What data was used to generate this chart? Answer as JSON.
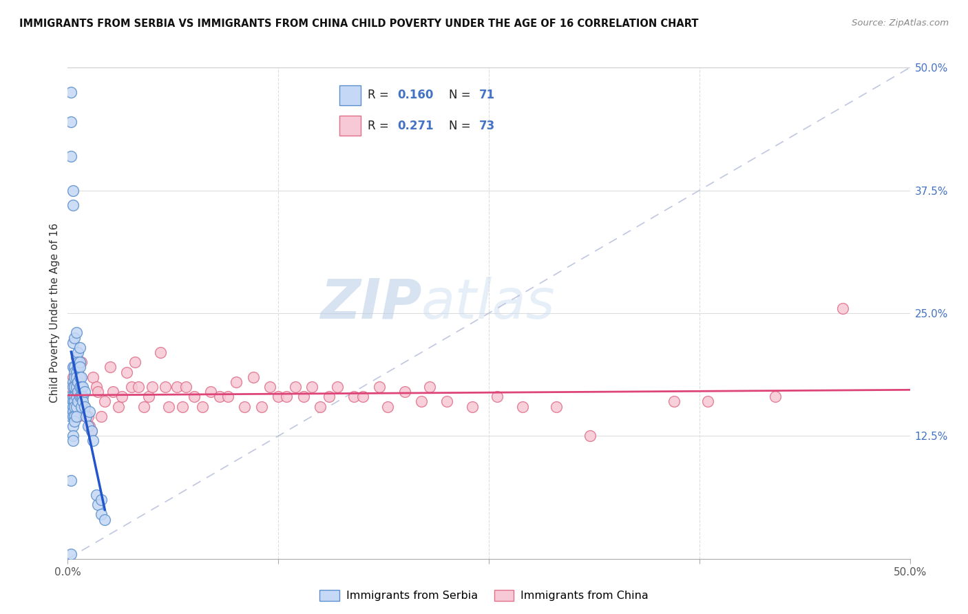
{
  "title": "IMMIGRANTS FROM SERBIA VS IMMIGRANTS FROM CHINA CHILD POVERTY UNDER THE AGE OF 16 CORRELATION CHART",
  "source": "Source: ZipAtlas.com",
  "ylabel": "Child Poverty Under the Age of 16",
  "xlim": [
    0,
    0.5
  ],
  "ylim": [
    0,
    0.5
  ],
  "serbia_color": "#c5d8f5",
  "serbia_edge": "#5b8fcc",
  "china_color": "#f7c8d5",
  "china_edge": "#e0708a",
  "serbia_R": 0.16,
  "serbia_N": 71,
  "china_R": 0.271,
  "china_N": 73,
  "legend_label1": "Immigrants from Serbia",
  "legend_label2": "Immigrants from China",
  "watermark": "ZIPatlas",
  "serbia_scatter_x": [
    0.002,
    0.002,
    0.002,
    0.002,
    0.002,
    0.002,
    0.002,
    0.003,
    0.003,
    0.003,
    0.003,
    0.003,
    0.003,
    0.003,
    0.003,
    0.003,
    0.003,
    0.003,
    0.003,
    0.003,
    0.003,
    0.004,
    0.004,
    0.004,
    0.004,
    0.004,
    0.004,
    0.004,
    0.004,
    0.004,
    0.004,
    0.005,
    0.005,
    0.005,
    0.005,
    0.005,
    0.005,
    0.005,
    0.005,
    0.006,
    0.006,
    0.006,
    0.006,
    0.006,
    0.006,
    0.007,
    0.007,
    0.007,
    0.007,
    0.007,
    0.007,
    0.008,
    0.008,
    0.008,
    0.008,
    0.009,
    0.009,
    0.009,
    0.01,
    0.01,
    0.011,
    0.012,
    0.013,
    0.014,
    0.015,
    0.017,
    0.018,
    0.02,
    0.02,
    0.022,
    0.002
  ],
  "serbia_scatter_y": [
    0.475,
    0.445,
    0.41,
    0.165,
    0.155,
    0.145,
    0.08,
    0.375,
    0.36,
    0.22,
    0.195,
    0.18,
    0.175,
    0.165,
    0.16,
    0.155,
    0.15,
    0.145,
    0.135,
    0.125,
    0.12,
    0.225,
    0.195,
    0.19,
    0.185,
    0.175,
    0.165,
    0.16,
    0.155,
    0.145,
    0.14,
    0.23,
    0.205,
    0.19,
    0.185,
    0.175,
    0.165,
    0.155,
    0.145,
    0.21,
    0.2,
    0.195,
    0.18,
    0.17,
    0.16,
    0.215,
    0.2,
    0.195,
    0.185,
    0.175,
    0.165,
    0.185,
    0.175,
    0.165,
    0.155,
    0.175,
    0.165,
    0.16,
    0.17,
    0.155,
    0.145,
    0.135,
    0.15,
    0.13,
    0.12,
    0.065,
    0.055,
    0.06,
    0.045,
    0.04,
    0.005
  ],
  "china_scatter_x": [
    0.002,
    0.003,
    0.004,
    0.004,
    0.005,
    0.005,
    0.006,
    0.006,
    0.007,
    0.008,
    0.009,
    0.01,
    0.011,
    0.012,
    0.013,
    0.014,
    0.015,
    0.017,
    0.018,
    0.02,
    0.022,
    0.025,
    0.027,
    0.03,
    0.032,
    0.035,
    0.038,
    0.04,
    0.042,
    0.045,
    0.048,
    0.05,
    0.055,
    0.058,
    0.06,
    0.065,
    0.068,
    0.07,
    0.075,
    0.08,
    0.085,
    0.09,
    0.095,
    0.1,
    0.105,
    0.11,
    0.115,
    0.12,
    0.125,
    0.13,
    0.135,
    0.14,
    0.145,
    0.15,
    0.155,
    0.16,
    0.17,
    0.175,
    0.185,
    0.19,
    0.2,
    0.21,
    0.215,
    0.225,
    0.24,
    0.255,
    0.27,
    0.29,
    0.31,
    0.36,
    0.38,
    0.42,
    0.46
  ],
  "china_scatter_y": [
    0.175,
    0.185,
    0.175,
    0.165,
    0.205,
    0.145,
    0.19,
    0.145,
    0.16,
    0.2,
    0.15,
    0.155,
    0.145,
    0.145,
    0.135,
    0.13,
    0.185,
    0.175,
    0.17,
    0.145,
    0.16,
    0.195,
    0.17,
    0.155,
    0.165,
    0.19,
    0.175,
    0.2,
    0.175,
    0.155,
    0.165,
    0.175,
    0.21,
    0.175,
    0.155,
    0.175,
    0.155,
    0.175,
    0.165,
    0.155,
    0.17,
    0.165,
    0.165,
    0.18,
    0.155,
    0.185,
    0.155,
    0.175,
    0.165,
    0.165,
    0.175,
    0.165,
    0.175,
    0.155,
    0.165,
    0.175,
    0.165,
    0.165,
    0.175,
    0.155,
    0.17,
    0.16,
    0.175,
    0.16,
    0.155,
    0.165,
    0.155,
    0.155,
    0.125,
    0.16,
    0.16,
    0.165,
    0.255
  ]
}
